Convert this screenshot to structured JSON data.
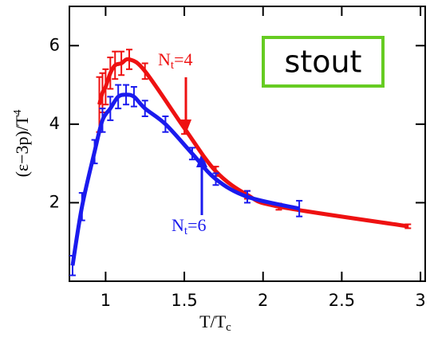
{
  "chart_data": {
    "type": "line",
    "x_label": [
      "T/T",
      "c"
    ],
    "y_label": [
      "(ε−3p)/T",
      "4"
    ],
    "annotation_box": "stout",
    "xlim": [
      0.77,
      3.03
    ],
    "ylim": [
      0,
      7
    ],
    "xticks": [
      1,
      1.5,
      2,
      2.5,
      3
    ],
    "yticks": [
      2,
      4,
      6
    ],
    "series": [
      {
        "label": [
          "N",
          "t",
          "=4"
        ],
        "color": "#ee1111",
        "x": [
          0.96,
          0.98,
          1.0,
          1.03,
          1.06,
          1.1,
          1.15,
          1.25,
          1.5,
          1.7,
          1.9,
          2.1,
          2.92
        ],
        "values": [
          4.5,
          4.8,
          4.95,
          5.3,
          5.5,
          5.55,
          5.65,
          5.35,
          3.9,
          2.8,
          2.2,
          1.9,
          1.4
        ],
        "errors": [
          0.7,
          0.5,
          0.45,
          0.4,
          0.35,
          0.3,
          0.25,
          0.2,
          0.15,
          0.12,
          0.1,
          0.08,
          0.05
        ]
      },
      {
        "label": [
          "N",
          "t",
          "=6"
        ],
        "color": "#1a1aee",
        "x": [
          0.79,
          0.85,
          0.93,
          0.98,
          1.03,
          1.08,
          1.13,
          1.18,
          1.25,
          1.38,
          1.55,
          1.7,
          1.9,
          2.23
        ],
        "values": [
          0.4,
          1.9,
          3.3,
          4.1,
          4.4,
          4.7,
          4.75,
          4.7,
          4.4,
          4.0,
          3.25,
          2.6,
          2.15,
          1.85
        ],
        "errors": [
          0.25,
          0.35,
          0.3,
          0.3,
          0.3,
          0.3,
          0.25,
          0.25,
          0.2,
          0.2,
          0.15,
          0.15,
          0.15,
          0.2
        ]
      }
    ]
  }
}
